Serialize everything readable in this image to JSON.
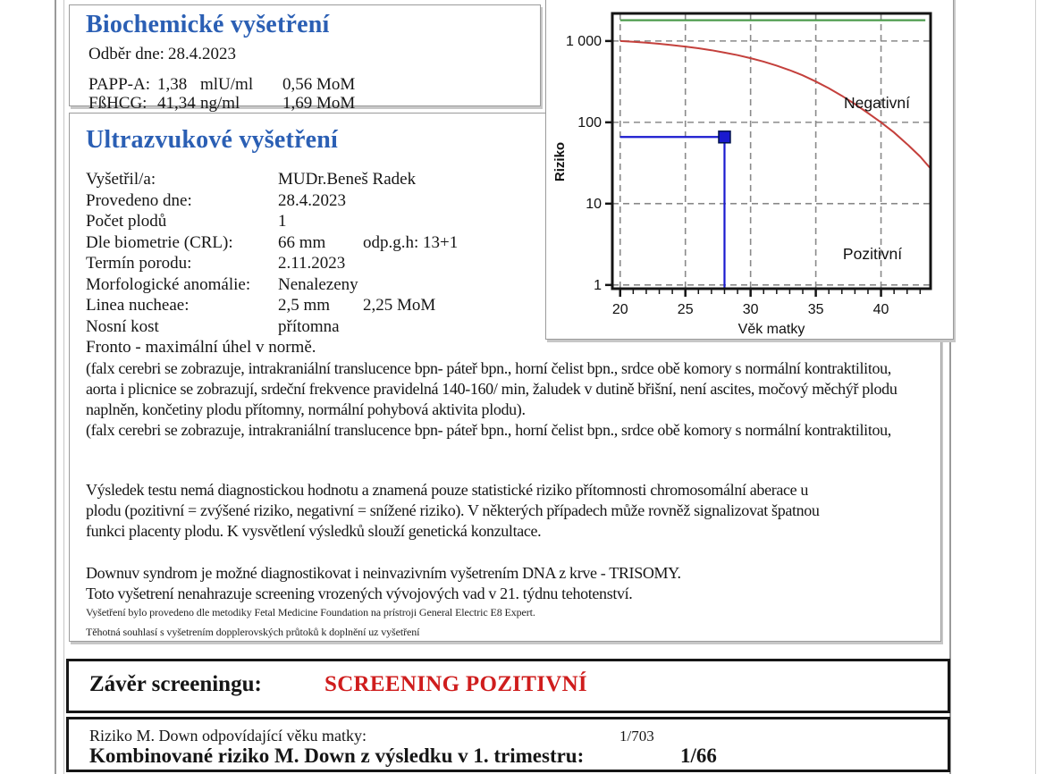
{
  "biochem": {
    "title": "Biochemické vyšetření",
    "sample_date_label": "Odběr dne:",
    "sample_date": "28.4.2023",
    "rows": [
      {
        "label": "PAPP-A:",
        "value": "1,38",
        "unit": "mlU/ml",
        "mom": "0,56 MoM"
      },
      {
        "label": "FßHCG:",
        "value": "41,34",
        "unit": "ng/ml",
        "mom": "1,69 MoM"
      }
    ]
  },
  "ultrasound": {
    "title": "Ultrazvukové vyšetření",
    "rows": [
      {
        "label": "Vyšetřil/a:",
        "value": "MUDr.Beneš Radek",
        "extra": ""
      },
      {
        "label": "Provedeno dne:",
        "value": "28.4.2023",
        "extra": ""
      },
      {
        "label": "Počet plodů",
        "value": "1",
        "extra": ""
      },
      {
        "label": "Dle biometrie (CRL):",
        "value": "66 mm",
        "extra": "odp.g.h: 13+1"
      },
      {
        "label": "Termín porodu:",
        "value": "2.11.2023",
        "extra": ""
      },
      {
        "label": "Morfologické anomálie:",
        "value": "Nenalezeny",
        "extra": ""
      },
      {
        "label": "Linea nucheae:",
        "value": "2,5 mm",
        "extra": "2,25 MoM"
      },
      {
        "label": "Nosní kost",
        "value": " přítomna",
        "extra": ""
      }
    ],
    "note": "Fronto - maximální úhel v normě."
  },
  "paragraphs": {
    "p1_lines": [
      "(falx cerebri se zobrazuje, intrakraniální translucence bpn- páteř bpn.,  horní čelist bpn., srdce obě komory s normální kontraktilitou,",
      "aorta i plicnice se zobrazují, srdeční frekvence pravidelná 140-160/ min, žaludek v dutině břišní, není ascites,  močový měchýř plodu",
      "naplněn, končetiny plodu přítomny, normální pohybová aktivita plodu).",
      "(falx cerebri se zobrazuje, intrakraniální translucence bpn- páteř bpn.,  horní čelist bpn., srdce obě komory s normální kontraktilitou,"
    ],
    "p2_lines": [
      "Výsledek testu  nemá diagnostickou hodnotu a znamená pouze statistické riziko přítomnosti chromosomální aberace u",
      "plodu (pozitivní = zvýšené riziko, negativní = snížené riziko).  V některých případech může rovněž signalizovat špatnou",
      "funkci placenty plodu. K vysvětlení výsledků slouží genetická konzultace."
    ],
    "p3_lines": [
      "Downuv syndrom je možné diagnostikovat i neinvazivním vyšetrením DNA z krve - TRISOMY.",
      "Toto vyšetrení nenahrazuje screening vrozených vývojových vad v 21. týdnu tehotenství."
    ]
  },
  "footnotes": [
    "Vyšetření bylo provedeno dle metodiky Fetal Medicine Foundation na prístroji General Electric E8 Expert.",
    "Těhotná souhlasí s vyšetrením dopplerovských průtoků k doplnění uz vyšetření"
  ],
  "conclusion": {
    "title": "Závěr screeningu:",
    "result": "SCREENING POZITIVNÍ",
    "age_risk_label": "Riziko M. Down odpovídající věku matky:",
    "age_risk_value": "1/703",
    "combined_risk_label": "Kombinované riziko M. Down z výsledku v 1. trimestru:",
    "combined_risk_value": "1/66"
  },
  "chart": {
    "ylabel": "Riziko",
    "xlabel": "Věk matky",
    "negative_label": "Negativní",
    "positive_label": "Pozitivní",
    "yticks": [
      {
        "v": 1000,
        "label": "1 000"
      },
      {
        "v": 100,
        "label": "100"
      },
      {
        "v": 10,
        "label": "10"
      },
      {
        "v": 1,
        "label": "1"
      }
    ],
    "xticks": [
      20,
      25,
      30,
      35,
      40
    ],
    "xminor_step": 1,
    "xrange": [
      19.4,
      43.8
    ],
    "yrange_log": [
      0.9,
      2185
    ],
    "grid": true,
    "colors": {
      "curve_red": "#c4403c",
      "limit_green": "#4c9b4c",
      "marker_blue": "#1a1acf",
      "marker_edge": "#00124d",
      "grid_gray": "#8a8a8a",
      "frame_black": "#141414"
    },
    "chart_data": {
      "type": "line",
      "xlabel": "Věk matky",
      "ylabel": "Riziko",
      "x_axis": "maternal age (years)",
      "y_axis": "risk denominator 1/N, log scale",
      "series": [
        {
          "name": "age-related-risk-curve",
          "x": [
            20,
            21,
            22,
            23,
            24,
            25,
            26,
            27,
            28,
            29,
            30,
            31,
            32,
            33,
            34,
            35,
            36,
            37,
            38,
            39,
            40,
            41,
            42,
            43,
            43.8
          ],
          "y": [
            1000,
            980,
            955,
            925,
            890,
            855,
            815,
            770,
            720,
            670,
            615,
            558,
            498,
            438,
            378,
            318,
            262,
            212,
            168,
            130,
            100,
            75,
            54,
            38,
            27
          ]
        },
        {
          "name": "upper-limit-line",
          "y_const": 1800,
          "x_start": 20,
          "x_end": 43.4
        },
        {
          "name": "patient-result-marker",
          "x": 28,
          "y": 66
        }
      ],
      "annotations": [
        "Negativní",
        "Pozitivní"
      ]
    }
  }
}
